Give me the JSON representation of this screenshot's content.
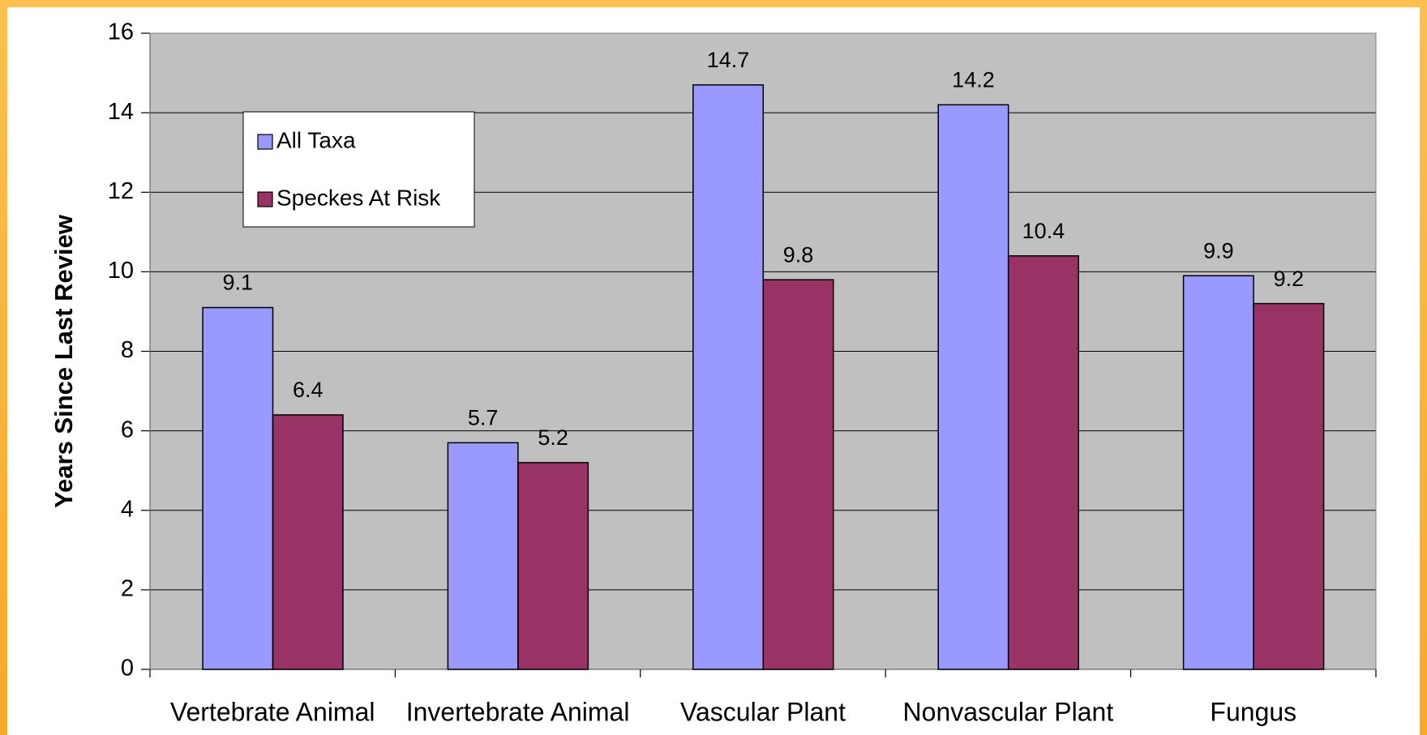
{
  "chart_data": {
    "type": "bar",
    "y_label": "Years Since Last Review",
    "categories": [
      "Vertebrate Animal",
      "Invertebrate Animal",
      "Vascular Plant",
      "Nonvascular Plant",
      "Fungus"
    ],
    "series": [
      {
        "name": "All Taxa",
        "color": "#9999ff",
        "values": [
          9.1,
          5.7,
          14.7,
          14.2,
          9.9
        ]
      },
      {
        "name": "Speckes At Risk",
        "color": "#993366",
        "values": [
          6.4,
          5.2,
          9.8,
          10.4,
          9.2
        ]
      }
    ],
    "ylim": [
      0,
      16
    ],
    "yticks": [
      0,
      2,
      4,
      6,
      8,
      10,
      12,
      14,
      16
    ],
    "grid": true,
    "plot_background": "#c0c0c0",
    "legend": "upper left"
  }
}
